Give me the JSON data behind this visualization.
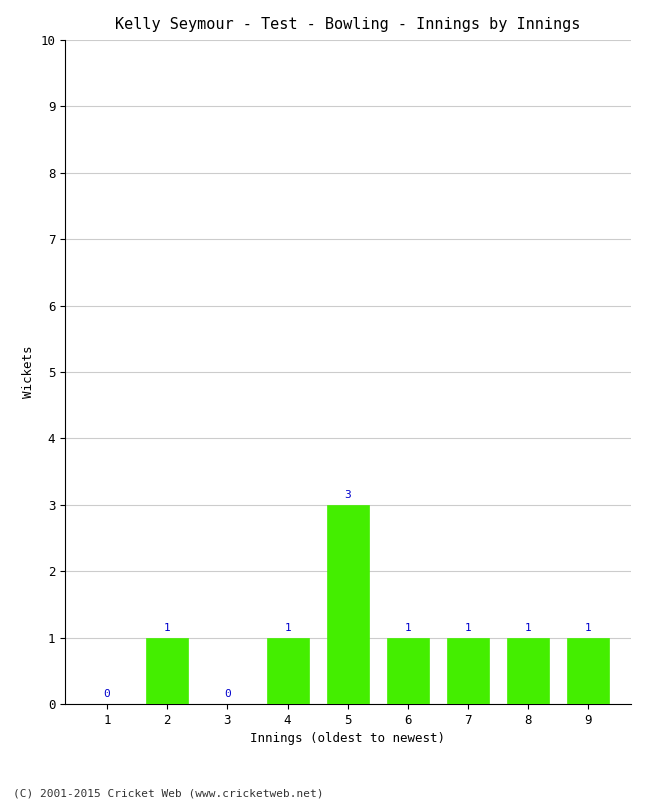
{
  "title": "Kelly Seymour - Test - Bowling - Innings by Innings",
  "xlabel": "Innings (oldest to newest)",
  "ylabel": "Wickets",
  "footer": "(C) 2001-2015 Cricket Web (www.cricketweb.net)",
  "innings": [
    1,
    2,
    3,
    4,
    5,
    6,
    7,
    8,
    9
  ],
  "wickets": [
    0,
    1,
    0,
    1,
    3,
    1,
    1,
    1,
    1
  ],
  "bar_color": "#44ee00",
  "bar_edge_color": "#44ee00",
  "label_color": "#0000cc",
  "background_color": "#ffffff",
  "grid_color": "#cccccc",
  "ylim": [
    0,
    10
  ],
  "yticks": [
    0,
    1,
    2,
    3,
    4,
    5,
    6,
    7,
    8,
    9,
    10
  ],
  "title_fontsize": 11,
  "axis_label_fontsize": 9,
  "tick_fontsize": 9,
  "bar_label_fontsize": 8,
  "footer_fontsize": 8
}
